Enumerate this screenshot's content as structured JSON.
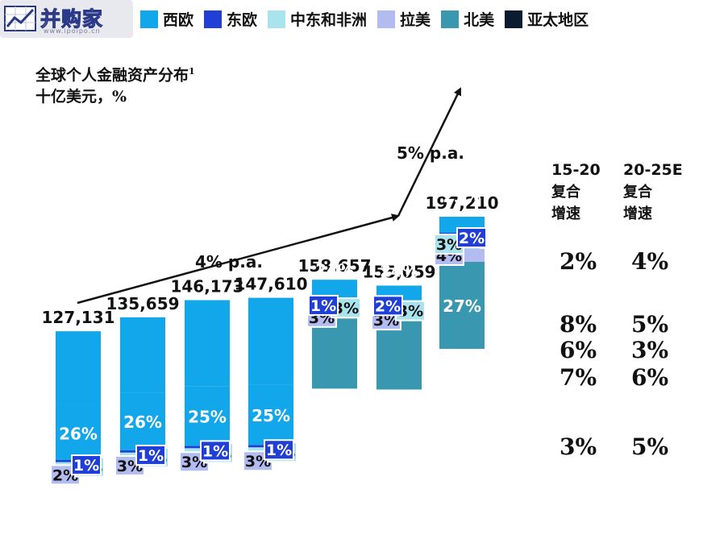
{
  "logo": {
    "text": "并购家",
    "url": "www.ipoipo.cn"
  },
  "chart_data": {
    "type": "bar",
    "title": "全球个人金融资产分布",
    "title_footnote": "1",
    "subtitle": "十亿美元，%",
    "ylim": [
      0,
      210000
    ],
    "totals": [
      "127,131",
      "135,659",
      "146,173",
      "147,610",
      "158,657",
      "155,059",
      "197,210"
    ],
    "total_values": [
      127131,
      135659,
      146173,
      147610,
      158657,
      155059,
      197210
    ],
    "series": [
      {
        "name": "北美",
        "color": "#3a97b0",
        "values": [
          null,
          null,
          null,
          null,
          27,
          27,
          27
        ],
        "labels": [
          "",
          "",
          "",
          "",
          "",
          "",
          "27%"
        ]
      },
      {
        "name": "拉美",
        "color": "#b3bcf0",
        "values": [
          2,
          3,
          3,
          3,
          3,
          3,
          4
        ],
        "labels": [
          "2%",
          "3%",
          "3%",
          "3%",
          "3%",
          "3%",
          "4%"
        ]
      },
      {
        "name": "中东和非洲",
        "color": "#a9e3ee",
        "values": [
          3,
          3,
          3,
          3,
          3,
          3,
          3
        ],
        "labels": [
          "3%",
          "3%",
          "3%",
          "3%",
          "3%",
          "3%",
          "3%"
        ]
      },
      {
        "name": "东欧",
        "color": "#1f3fd6",
        "values": [
          1,
          1,
          1,
          1,
          1,
          2,
          2
        ],
        "labels": [
          "1%",
          "1%",
          "1%",
          "1%",
          "1%",
          "2%",
          "2%"
        ]
      },
      {
        "name": "西欧",
        "color": "#12a6ea",
        "values": [
          26,
          26,
          25,
          25,
          24,
          24,
          23
        ],
        "labels": [
          "26%",
          "26%",
          "25%",
          "25%",
          "24%",
          "24%",
          "23%"
        ]
      }
    ],
    "legend": [
      {
        "name": "西欧",
        "color": "#12a6ea"
      },
      {
        "name": "东欧",
        "color": "#1f3fd6"
      },
      {
        "name": "中东和非洲",
        "color": "#a9e3ee"
      },
      {
        "name": "拉美",
        "color": "#b3bcf0"
      },
      {
        "name": "北美",
        "color": "#3a97b0"
      },
      {
        "name": "亚太地区",
        "color": "#0c1c30"
      }
    ],
    "legend_position": "top",
    "annotations": [
      "4% p.a.",
      "5% p.a."
    ],
    "growth_table": {
      "headers": [
        {
          "period": "15-20",
          "label1": "复合",
          "label2": "增速"
        },
        {
          "period": "20-25E",
          "label1": "复合",
          "label2": "增速"
        }
      ],
      "rows": [
        {
          "region": "西欧",
          "values": [
            "2%",
            "4%"
          ]
        },
        {
          "region": "东欧",
          "values": [
            "8%",
            "5%"
          ]
        },
        {
          "region": "中东和非洲",
          "values": [
            "6%",
            "3%"
          ]
        },
        {
          "region": "拉美",
          "values": [
            "7%",
            "6%"
          ]
        },
        {
          "region": "北美",
          "values": [
            "3%",
            "5%"
          ]
        }
      ]
    }
  }
}
